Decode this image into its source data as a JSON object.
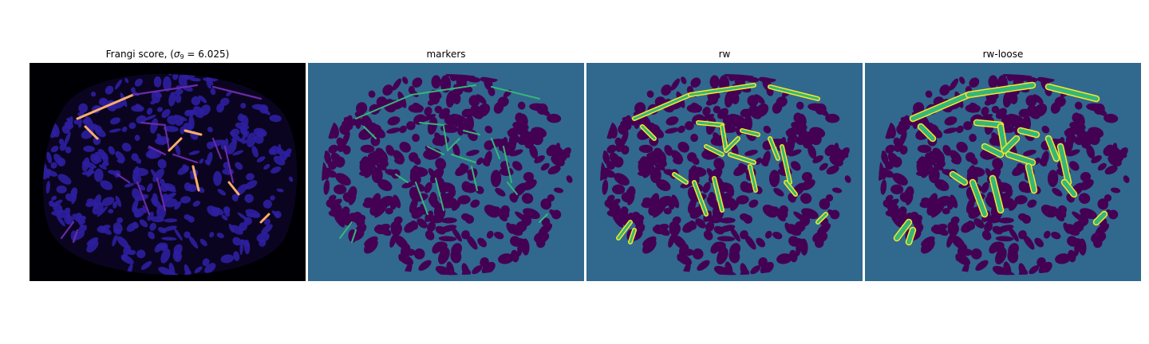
{
  "figure": {
    "panels": [
      {
        "id": "frangi",
        "title_prefix": "Frangi score, (",
        "title_sigma": "σ",
        "title_sub": "9",
        "title_suffix": " = 6.025)",
        "colormap": "magma",
        "background": "#000004",
        "blob": "#2c1fa0",
        "vessel_low": "#6a2aa8",
        "vessel_high": "#fcae6b"
      },
      {
        "id": "markers",
        "title": "markers",
        "colormap": "viridis",
        "background": "#31688e",
        "blob": "#440154",
        "marker": "#35b779"
      },
      {
        "id": "rw",
        "title": "rw",
        "colormap": "viridis",
        "background": "#31688e",
        "blob": "#440154",
        "fill": "#35b779",
        "edge": "#fde725"
      },
      {
        "id": "rw-loose",
        "title": "rw-loose",
        "colormap": "viridis",
        "background": "#31688e",
        "blob": "#440154",
        "fill": "#35b779",
        "edge": "#fde725"
      }
    ]
  }
}
